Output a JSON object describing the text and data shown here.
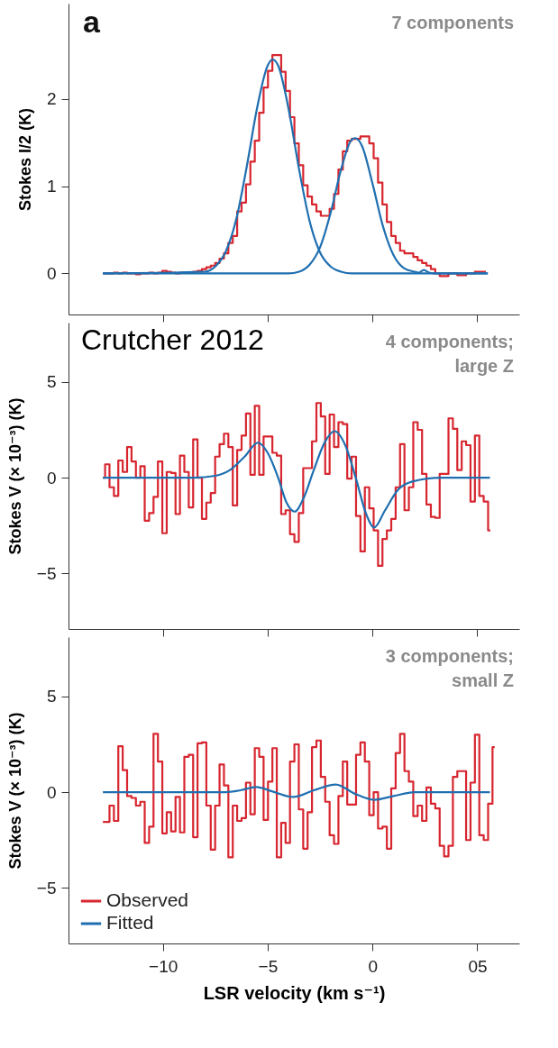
{
  "chart_data": [
    {
      "type": "line",
      "ylabel": "Stokes I/2 (K)",
      "xlim": [
        -14.5,
        7
      ],
      "ylim": [
        -0.47,
        3.09
      ],
      "xticks": [
        -10,
        -5,
        0,
        5
      ],
      "yticks": [
        0,
        1,
        2
      ],
      "tick_labels": "y",
      "annotations": [
        "a",
        "7 components"
      ],
      "series": [
        {
          "type": "step",
          "color": "#d7262f",
          "x": [
            -12.86,
            -12.65,
            -12.44,
            -12.23,
            -12.02,
            -11.81,
            -11.6,
            -11.39,
            -11.18,
            -10.97,
            -10.76,
            -10.55,
            -10.34,
            -10.13,
            -9.92,
            -9.71,
            -9.5,
            -9.29,
            -9.08,
            -8.87,
            -8.66,
            -8.45,
            -8.24,
            -8.03,
            -7.82,
            -7.61,
            -7.4,
            -7.19,
            -6.98,
            -6.77,
            -6.56,
            -6.35,
            -6.14,
            -5.93,
            -5.72,
            -5.51,
            -5.3,
            -5.09,
            -4.88,
            -4.67,
            -4.46,
            -4.25,
            -4.04,
            -3.83,
            -3.62,
            -3.41,
            -3.2,
            -2.99,
            -2.78,
            -2.57,
            -2.36,
            -2.15,
            -1.94,
            -1.73,
            -1.52,
            -1.31,
            -1.1,
            -0.89,
            -0.68,
            -0.47,
            -0.26,
            -0.05,
            0.16,
            0.37,
            0.58,
            0.79,
            1.0,
            1.21,
            1.42,
            1.63,
            1.84,
            2.05,
            2.26,
            2.47,
            2.68,
            2.89,
            3.1,
            3.31,
            3.52,
            3.73,
            3.94,
            4.15,
            4.36,
            4.57,
            4.78,
            4.99,
            5.2,
            5.41
          ],
          "values": [
            0,
            0,
            0,
            0.01,
            0,
            0.01,
            0,
            0,
            -0.01,
            0,
            0,
            0.01,
            0,
            0.01,
            0.03,
            0.02,
            0.01,
            0,
            0.01,
            0.01,
            0.01,
            0.02,
            0.03,
            0.05,
            0.07,
            0.09,
            0.12,
            0.17,
            0.23,
            0.35,
            0.43,
            0.71,
            0.81,
            1.02,
            1.28,
            1.52,
            1.84,
            2.13,
            2.32,
            2.5,
            2.5,
            2.31,
            2.09,
            1.79,
            1.49,
            1.24,
            1.01,
            0.88,
            0.79,
            0.71,
            0.66,
            0.66,
            0.74,
            0.91,
            1.19,
            1.4,
            1.52,
            1.54,
            1.54,
            1.57,
            1.57,
            1.49,
            1.32,
            1.04,
            0.79,
            0.59,
            0.43,
            0.35,
            0.26,
            0.23,
            0.23,
            0.19,
            0.15,
            0.12,
            0.09,
            0.05,
            0,
            -0.03,
            -0.03,
            0,
            0,
            -0.02,
            -0.02,
            0,
            0,
            0.02,
            0.02,
            0.02
          ]
        },
        {
          "type": "line",
          "color": "#1f6fb0",
          "x": [
            -12.86,
            -8,
            -7.5,
            -7,
            -6.5,
            -6,
            -5.5,
            -5,
            -4.76,
            -4.5,
            -4,
            -3.5,
            -3,
            -2.5,
            -2,
            -1.5,
            -1,
            5.5
          ],
          "values": [
            0,
            0.02,
            0.08,
            0.25,
            0.62,
            1.22,
            1.9,
            2.38,
            2.45,
            2.38,
            1.88,
            1.19,
            0.6,
            0.24,
            0.08,
            0.02,
            0,
            0
          ]
        },
        {
          "type": "line",
          "color": "#1f6fb0",
          "x": [
            -12.86,
            -4,
            -3.5,
            -3,
            -2.5,
            -2,
            -1.5,
            -1,
            -0.83,
            -0.5,
            0,
            0.5,
            1,
            1.5,
            2,
            2.2,
            2.45,
            2.7,
            3,
            5.5
          ],
          "values": [
            0,
            0,
            0.02,
            0.1,
            0.3,
            0.69,
            1.19,
            1.53,
            1.55,
            1.46,
            1.03,
            0.54,
            0.21,
            0.06,
            0.02,
            0.01,
            0.04,
            0.01,
            0,
            0
          ]
        }
      ]
    },
    {
      "type": "line",
      "ylabel": "Stokes V (× 10⁻³) (K)",
      "xlim": [
        -14.5,
        7
      ],
      "ylim": [
        -7.9,
        8.1
      ],
      "xticks": [
        -10,
        -5,
        0,
        5
      ],
      "yticks": [
        -5,
        0,
        5
      ],
      "tick_labels": "y",
      "annotations": [
        "Crutcher 2012",
        "4 components;",
        "large Z"
      ],
      "series": [
        {
          "type": "step",
          "color": "#d7262f",
          "x": [
            -12.86,
            -12.65,
            -12.44,
            -12.23,
            -12.02,
            -11.81,
            -11.6,
            -11.39,
            -11.18,
            -10.97,
            -10.76,
            -10.55,
            -10.34,
            -10.13,
            -9.92,
            -9.71,
            -9.5,
            -9.29,
            -9.08,
            -8.87,
            -8.66,
            -8.45,
            -8.24,
            -8.03,
            -7.82,
            -7.61,
            -7.4,
            -7.19,
            -6.98,
            -6.77,
            -6.56,
            -6.35,
            -6.14,
            -5.93,
            -5.72,
            -5.51,
            -5.3,
            -5.09,
            -4.88,
            -4.67,
            -4.46,
            -4.25,
            -4.04,
            -3.83,
            -3.62,
            -3.41,
            -3.2,
            -2.99,
            -2.78,
            -2.57,
            -2.36,
            -2.15,
            -1.94,
            -1.73,
            -1.52,
            -1.31,
            -1.1,
            -0.89,
            -0.68,
            -0.47,
            -0.26,
            -0.05,
            0.16,
            0.37,
            0.58,
            0.79,
            1.0,
            1.21,
            1.42,
            1.63,
            1.84,
            2.05,
            2.26,
            2.47,
            2.68,
            2.89,
            3.1,
            3.31,
            3.52,
            3.73,
            3.94,
            4.15,
            4.36,
            4.57,
            4.78,
            4.99,
            5.2,
            5.41,
            5.62
          ],
          "values": [
            0,
            0.7,
            -0.5,
            -0.95,
            0.9,
            0.3,
            1.6,
            0.85,
            0,
            0.6,
            -2.25,
            -1.85,
            -1.0,
            0.85,
            -2.9,
            0.3,
            0.25,
            -1.9,
            1.15,
            0.3,
            -1.55,
            2.0,
            0,
            -2.15,
            -1.3,
            -0.8,
            1.1,
            1.75,
            2.3,
            1.6,
            -1.45,
            1.45,
            2.2,
            3.35,
            0.15,
            3.75,
            0.15,
            2.15,
            2.15,
            1.3,
            1.15,
            -1.9,
            -1.7,
            -2.95,
            -3.35,
            -1.85,
            0.5,
            0.5,
            1.9,
            3.9,
            3.2,
            0.2,
            3.3,
            1.6,
            2.9,
            2.8,
            -0.05,
            1.1,
            -2.0,
            -3.85,
            -0.5,
            -1.6,
            -2.75,
            -4.6,
            -3.2,
            -2.75,
            -2.15,
            -0.5,
            1.75,
            -1.7,
            -0.5,
            2.9,
            2.5,
            0.2,
            -1.4,
            -2.05,
            -2.1,
            0.2,
            0.2,
            3.1,
            2.55,
            0.4,
            1.9,
            1.7,
            -1.25,
            2.2,
            -0.95,
            -1.25,
            -2.75
          ]
        },
        {
          "type": "line",
          "color": "#1f6fb0",
          "x": [
            -12.86,
            -8.5,
            -7.5,
            -6.8,
            -6.1,
            -5.46,
            -5.0,
            -4.5,
            -4.1,
            -3.71,
            -3.3,
            -2.8,
            -2.3,
            -1.81,
            -1.3,
            -0.8,
            -0.3,
            0.08,
            0.6,
            1.2,
            1.9,
            3.3,
            5.6
          ],
          "values": [
            0,
            0,
            0.1,
            0.4,
            1.1,
            1.83,
            1.3,
            0,
            -1.3,
            -1.77,
            -1.1,
            0.4,
            1.8,
            2.43,
            1.7,
            0,
            -1.9,
            -2.6,
            -1.7,
            -0.65,
            -0.2,
            0,
            0
          ]
        }
      ]
    },
    {
      "type": "line",
      "ylabel": "Stokes V (× 10⁻³) (K)",
      "xlabel": "LSR velocity (km s⁻¹)",
      "xlim": [
        -14.5,
        7
      ],
      "ylim": [
        -7.9,
        8.1
      ],
      "xticks": [
        -10,
        -5,
        0,
        {
          "value": 5,
          "label": "05"
        }
      ],
      "yticks": [
        -5,
        0,
        5
      ],
      "legend": "bottom left",
      "annotations": [
        "3 components;",
        "small Z"
      ],
      "series": [
        {
          "type": "step",
          "name": "Observed",
          "color": "#d7262f",
          "x": [
            -12.86,
            -12.65,
            -12.44,
            -12.23,
            -12.02,
            -11.81,
            -11.6,
            -11.39,
            -11.18,
            -10.97,
            -10.76,
            -10.55,
            -10.34,
            -10.13,
            -9.92,
            -9.71,
            -9.5,
            -9.29,
            -9.08,
            -8.87,
            -8.66,
            -8.45,
            -8.24,
            -8.03,
            -7.82,
            -7.61,
            -7.4,
            -7.19,
            -6.98,
            -6.77,
            -6.56,
            -6.35,
            -6.14,
            -5.93,
            -5.72,
            -5.51,
            -5.3,
            -5.09,
            -4.88,
            -4.67,
            -4.46,
            -4.25,
            -4.04,
            -3.83,
            -3.62,
            -3.41,
            -3.2,
            -2.99,
            -2.78,
            -2.57,
            -2.36,
            -2.15,
            -1.94,
            -1.73,
            -1.52,
            -1.31,
            -1.1,
            -0.89,
            -0.68,
            -0.47,
            -0.26,
            -0.05,
            0.16,
            0.37,
            0.58,
            0.79,
            1.0,
            1.21,
            1.42,
            1.63,
            1.84,
            2.05,
            2.26,
            2.47,
            2.68,
            2.89,
            3.1,
            3.31,
            3.52,
            3.73,
            3.94,
            4.15,
            4.36,
            4.57,
            4.78,
            4.99,
            5.2,
            5.41,
            5.62,
            5.83
          ],
          "values": [
            -1.55,
            -1.55,
            -0.7,
            -1.5,
            2.4,
            1.15,
            -0.2,
            -0.3,
            -0.7,
            -0.5,
            -2.65,
            -1.8,
            3.05,
            1.6,
            -2.15,
            -1.05,
            -2.05,
            -0.25,
            -2.1,
            1.85,
            1.95,
            -2.35,
            2.55,
            2.6,
            -0.7,
            -3.0,
            -0.7,
            1.45,
            0.35,
            -3.4,
            -0.7,
            -1.5,
            -1.35,
            0.5,
            -1.15,
            2.3,
            1.85,
            -1.45,
            0.55,
            2.3,
            -3.4,
            -1.6,
            -2.65,
            1.6,
            2.5,
            -0.9,
            -2.95,
            -1.05,
            2.35,
            2.7,
            0.8,
            -0.5,
            -2.25,
            -2.7,
            -0.2,
            1.6,
            -0.65,
            -0.65,
            1.95,
            2.6,
            1.6,
            -1.2,
            0,
            -1.9,
            -1.8,
            -2.95,
            0.2,
            2.05,
            3.05,
            1.1,
            0.55,
            -1.25,
            -0.7,
            -1.5,
            0.25,
            -0.6,
            -0.85,
            -2.8,
            -3.35,
            -2.8,
            0.8,
            1.1,
            1.1,
            -2.5,
            0.5,
            3.0,
            -2.25,
            -2.5,
            -0.6,
            2.35
          ]
        },
        {
          "type": "line",
          "name": "Fitted",
          "color": "#1f6fb0",
          "x": [
            -12.86,
            -7,
            -6.3,
            -5.55,
            -4.8,
            -3.78,
            -2.8,
            -1.75,
            -0.8,
            0.08,
            1,
            2,
            5.6
          ],
          "values": [
            0,
            0,
            0.1,
            0.27,
            0.05,
            -0.25,
            0.1,
            0.4,
            -0.1,
            -0.4,
            -0.2,
            0,
            0
          ]
        }
      ]
    }
  ]
}
